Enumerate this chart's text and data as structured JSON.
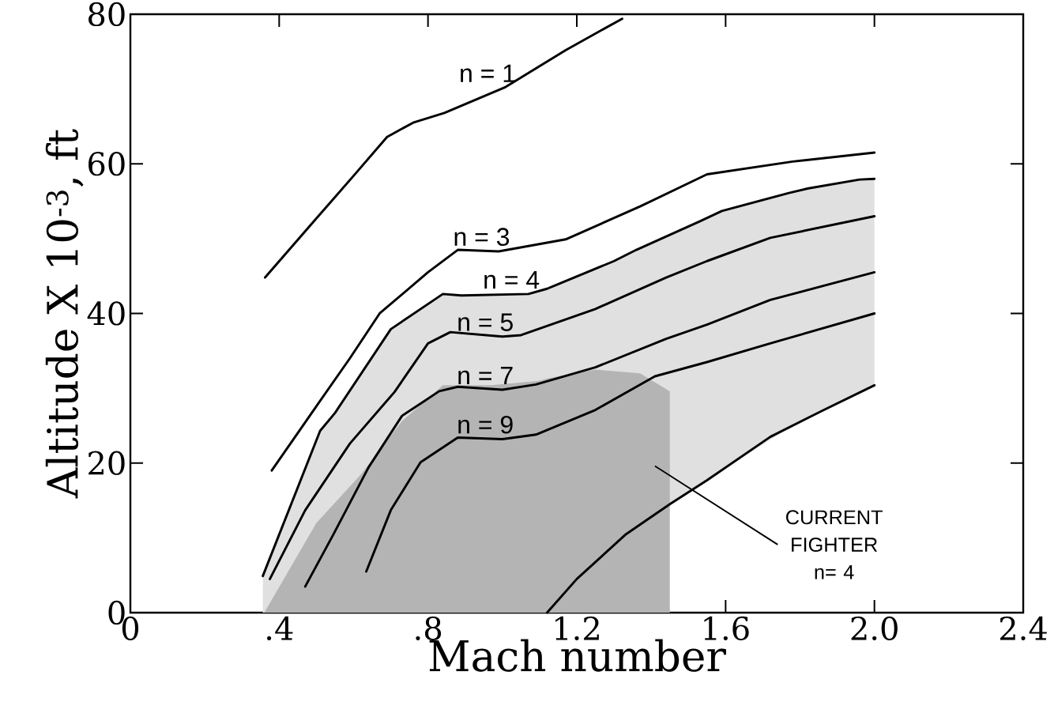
{
  "chart_data": {
    "type": "line",
    "xlabel": "Mach number",
    "ylabel": "Altitude X 10$^{-3}$, ft",
    "xlim": [
      0,
      2.4
    ],
    "ylim": [
      0,
      80
    ],
    "xticks": [
      0,
      {
        "value": 0.4,
        "label": ".4"
      },
      {
        "value": 0.8,
        "label": ".8"
      },
      1.2,
      1.6,
      {
        "value": 2.0,
        "label": "2.0"
      },
      2.4
    ],
    "yticks": [
      0,
      20,
      40,
      60,
      80
    ],
    "series": [
      {
        "name": "n = 1",
        "color": "#000000",
        "x": [
          0.362,
          0.5,
          0.6,
          0.69,
          0.76,
          0.844,
          1.006,
          1.17,
          1.322
        ],
        "values": [
          44.8,
          52.7,
          58.4,
          63.6,
          65.5,
          66.8,
          70.2,
          75.2,
          79.4
        ]
      },
      {
        "name": "n = 3",
        "color": "#000000",
        "x": [
          0.38,
          0.5,
          0.59,
          0.67,
          0.8,
          0.88,
          0.99,
          1.17,
          1.37,
          1.55,
          1.78,
          2.0
        ],
        "values": [
          19,
          27.6,
          34,
          40,
          45.5,
          48.5,
          48.3,
          49.9,
          54.3,
          58.6,
          60.3,
          61.5
        ]
      },
      {
        "name": "n = 4",
        "color": "#000000",
        "x": [
          0.356,
          0.51,
          0.55,
          0.7,
          0.84,
          0.89,
          1.07,
          1.12,
          1.14,
          1.3,
          1.36,
          1.53,
          1.59,
          1.77,
          1.82,
          1.96,
          2.0
        ],
        "values": [
          4.9,
          24.3,
          26.7,
          37.9,
          42.6,
          42.4,
          42.6,
          43.3,
          43.7,
          47,
          48.5,
          52.3,
          53.7,
          56.1,
          56.7,
          57.9,
          58
        ],
        "upper": [
          4.9,
          24.3,
          26.7,
          37.9,
          42.6,
          42.4,
          42.6,
          43.3,
          43.7,
          47,
          48.5,
          52.3,
          53.7,
          56.1,
          56.7,
          57.9,
          58
        ],
        "lower": [
          0,
          0,
          0,
          0,
          0,
          0,
          0,
          0,
          0.9,
          9,
          11.4,
          17.1,
          19,
          24.7,
          25.9,
          29.4,
          30.4
        ]
      },
      {
        "type": "area",
        "color": "#b4b4b4",
        "x": [
          0.36,
          0.5,
          0.62,
          0.73,
          0.84,
          0.97,
          1.1,
          1.12,
          1.25,
          1.37,
          1.45
        ],
        "values": [
          0,
          12,
          18.5,
          25.6,
          30.4,
          30.4,
          31,
          31.3,
          32.5,
          32,
          29.6
        ]
      },
      {
        "name": "n = 5",
        "color": "#000000",
        "x": [
          0.375,
          0.47,
          0.59,
          0.71,
          0.8,
          0.86,
          1.0,
          1.05,
          1.25,
          1.44,
          1.55,
          1.72,
          2.0
        ],
        "values": [
          4.5,
          13.7,
          22.6,
          29.5,
          36,
          37.5,
          36.9,
          37.1,
          40.6,
          44.8,
          47,
          50.1,
          53
        ]
      },
      {
        "name": "n = 7",
        "color": "#000000",
        "x": [
          0.47,
          0.545,
          0.64,
          0.73,
          0.83,
          0.88,
          1.0,
          1.09,
          1.25,
          1.44,
          1.55,
          1.72,
          2.0
        ],
        "values": [
          3.5,
          10.4,
          19.4,
          26.3,
          29.6,
          30.2,
          29.8,
          30.5,
          32.8,
          36.6,
          38.5,
          41.8,
          45.5
        ]
      },
      {
        "name": "n = 9",
        "color": "#000000",
        "x": [
          0.634,
          0.7,
          0.78,
          0.88,
          1.0,
          1.09,
          1.25,
          1.41,
          1.55,
          1.72,
          2.0
        ],
        "values": [
          5.5,
          13.7,
          20.1,
          23.4,
          23.2,
          23.8,
          27.1,
          31.6,
          33.5,
          36,
          40
        ]
      },
      {
        "color": "#000000",
        "x": [
          1.12,
          1.2,
          1.33,
          1.45,
          1.55,
          1.72,
          1.86,
          2.0
        ],
        "values": [
          0,
          4.5,
          10.4,
          14.5,
          17.7,
          23.5,
          27,
          30.4
        ]
      }
    ],
    "annotations": [
      "CURRENT FIGHTER n= 4"
    ]
  }
}
